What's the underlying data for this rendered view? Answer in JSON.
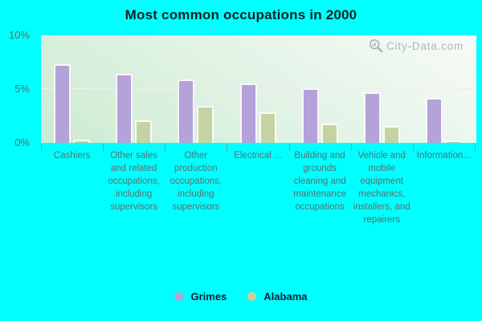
{
  "watermark": {
    "text": "City-Data.com"
  },
  "colors": {
    "background": "#00ffff",
    "plot_gradient_light": "#f6fbf7",
    "plot_gradient_dark": "#cdebd1",
    "gridline": "#f3ebf2",
    "title_text": "#122222",
    "axis_text": "#5c6e72",
    "legend_text": "#1a1a30",
    "watermark_text": "#a6abb2"
  },
  "chart_data": {
    "type": "bar",
    "title": "Most common occupations in 2000",
    "categories": [
      "Cashiers",
      "Other sales and related occupations, including supervisors",
      "Other production occupations, including supervisors",
      "Electrical ...",
      "Building and grounds cleaning and maintenance occupations",
      "Vehicle and mobile equipment mechanics, installers, and repairers",
      "Information..."
    ],
    "series": [
      {
        "name": "Grimes",
        "color": "#b4a2d8",
        "values": [
          7.3,
          6.4,
          5.9,
          5.5,
          5.1,
          4.7,
          4.2
        ]
      },
      {
        "name": "Alabama",
        "color": "#c5d3a2",
        "values": [
          0.3,
          2.1,
          3.4,
          2.8,
          1.8,
          1.6,
          0.2
        ]
      }
    ],
    "xlabel": "",
    "ylabel": "",
    "ylim": [
      0,
      10
    ],
    "yticks": [
      {
        "value": 0,
        "label": "0%"
      },
      {
        "value": 5,
        "label": "5%"
      },
      {
        "value": 10,
        "label": "10%"
      }
    ],
    "gridlines": [
      5
    ],
    "grid": "horizontal-only",
    "legend_position": "bottom"
  }
}
